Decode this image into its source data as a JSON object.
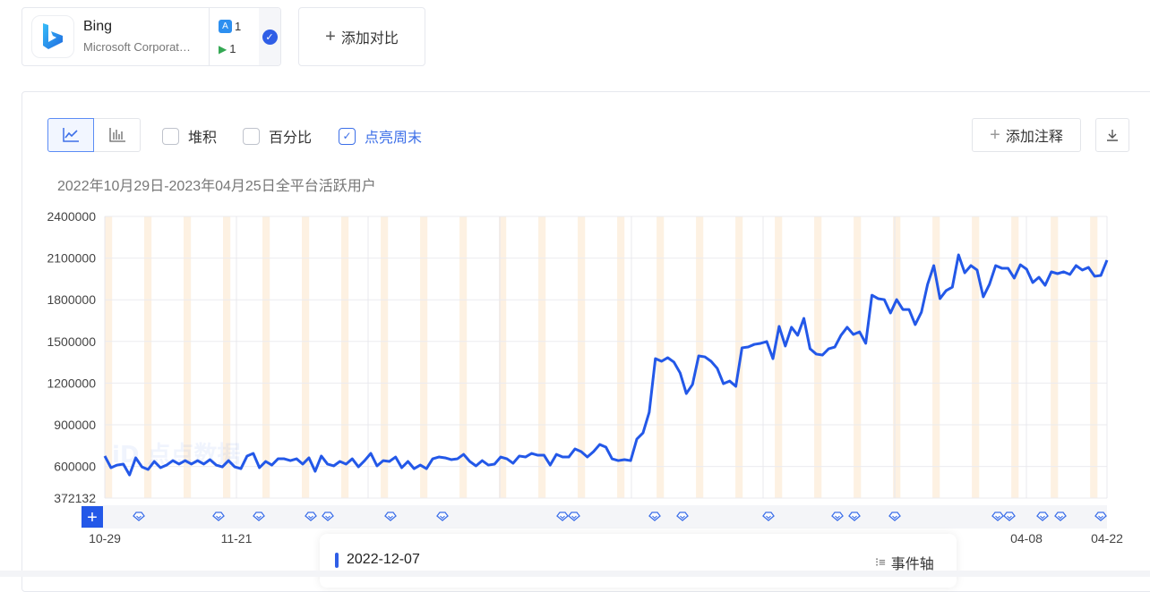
{
  "app_card": {
    "name": "Bing",
    "company": "Microsoft Corporat…",
    "ios_count": "1",
    "android_count": "1",
    "selected": true
  },
  "add_compare_label": "添加对比",
  "toolbar": {
    "line_icon": "line-chart-icon",
    "bar_icon": "bar-chart-icon",
    "stack_label": "堆积",
    "stack_checked": false,
    "percent_label": "百分比",
    "percent_checked": false,
    "weekend_label": "点亮周末",
    "weekend_checked": true,
    "add_note_label": "添加注释",
    "download_icon": "download-icon"
  },
  "watermark": "点点数据",
  "tooltip": {
    "date": "2022-12-07",
    "event_axis_label": "事件轴"
  },
  "colors": {
    "line": "#2358e8",
    "weekend": "#fdf1e2",
    "accent": "#3c6fe8"
  },
  "chart_data": {
    "type": "line",
    "title": "2022年10月29日-2023年04月25日全平台活跃用户",
    "x_range": [
      "2022-10-29",
      "2023-04-25"
    ],
    "x_tick_labels": [
      "10-29",
      "11-21",
      "04-08",
      "04-22"
    ],
    "y_tick_labels": [
      "2400000",
      "2100000",
      "1800000",
      "1500000",
      "1200000",
      "900000",
      "600000",
      "372132"
    ],
    "ylim": [
      372132,
      2400000
    ],
    "grid": true,
    "weekend_highlight": true,
    "series": [
      {
        "values": [
          675000,
          591000,
          610000,
          617000,
          539000,
          662000,
          597000,
          578000,
          636000,
          591000,
          610000,
          642000,
          617000,
          642000,
          617000,
          642000,
          617000,
          649000,
          610000,
          597000,
          642000,
          597000,
          584000,
          675000,
          694000,
          591000,
          636000,
          610000,
          655000,
          655000,
          642000,
          655000,
          617000,
          662000,
          565000,
          675000,
          617000,
          604000,
          636000,
          617000,
          655000,
          597000,
          642000,
          694000,
          604000,
          642000,
          636000,
          668000,
          591000,
          636000,
          584000,
          610000,
          584000,
          655000,
          668000,
          662000,
          649000,
          655000,
          687000,
          636000,
          604000,
          642000,
          610000,
          617000,
          668000,
          655000,
          623000,
          675000,
          668000,
          694000,
          681000,
          681000,
          610000,
          687000,
          668000,
          668000,
          726000,
          707000,
          668000,
          707000,
          758000,
          739000,
          655000,
          642000,
          649000,
          642000,
          797000,
          842000,
          990000,
          1376000,
          1357000,
          1383000,
          1351000,
          1273000,
          1125000,
          1190000,
          1396000,
          1389000,
          1357000,
          1306000,
          1196000,
          1215000,
          1177000,
          1454000,
          1460000,
          1479000,
          1486000,
          1499000,
          1376000,
          1608000,
          1467000,
          1602000,
          1544000,
          1666000,
          1447000,
          1409000,
          1402000,
          1447000,
          1460000,
          1544000,
          1602000,
          1550000,
          1569000,
          1486000,
          1833000,
          1808000,
          1801000,
          1705000,
          1801000,
          1730000,
          1730000,
          1621000,
          1711000,
          1911000,
          2046000,
          1808000,
          1866000,
          1891000,
          2123000,
          1994000,
          2046000,
          2014000,
          1821000,
          1911000,
          2046000,
          2027000,
          2027000,
          1956000,
          2052000,
          2020000,
          1924000,
          1962000,
          1904000,
          2001000,
          1988000,
          2001000,
          1982000,
          2046000,
          2014000,
          2033000,
          1969000,
          1975000,
          2085000
        ]
      }
    ]
  }
}
